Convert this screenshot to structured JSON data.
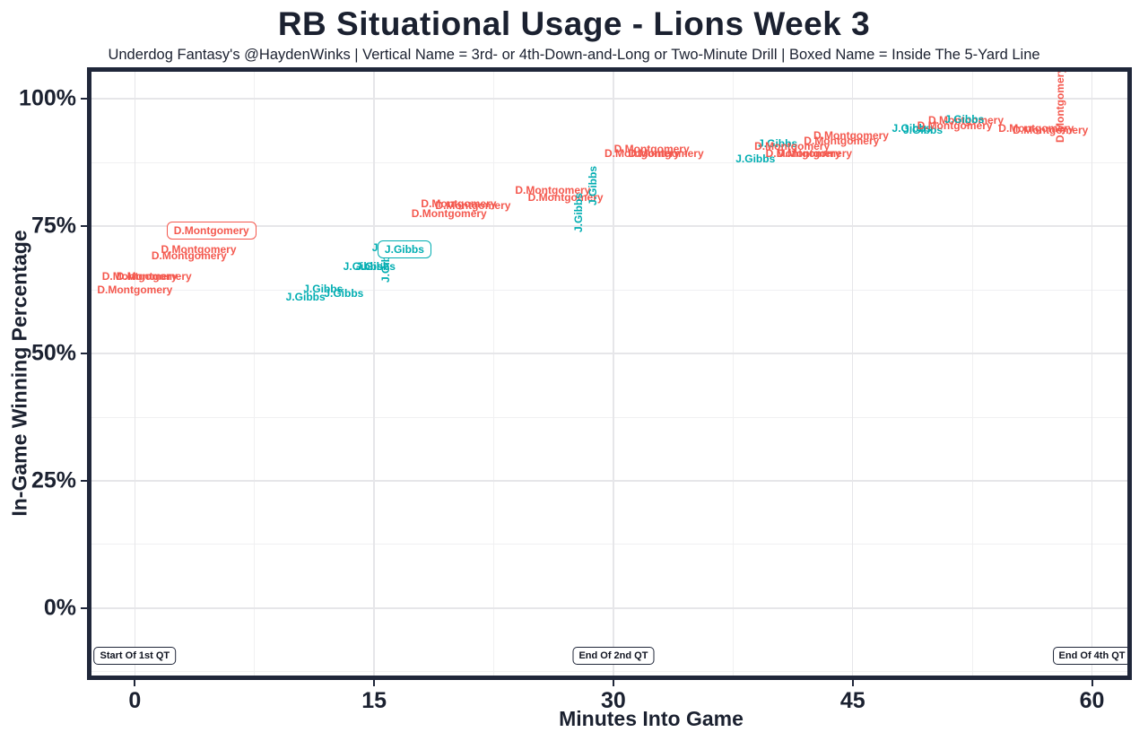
{
  "title": "RB Situational Usage - Lions Week 3",
  "subtitle": "Underdog Fantasy's @HaydenWinks | Vertical Name = 3rd- or 4th-Down-and-Long or Two-Minute Drill | Boxed Name = Inside The 5-Yard Line",
  "colors": {
    "montgomery": "#f4584e",
    "gibbs": "#00adb1",
    "text": "#1b2130",
    "border": "#20273a",
    "grid_major": "#e6e6e9",
    "grid_minor": "#f0f0f2",
    "background": "#ffffff"
  },
  "chart_data": {
    "type": "scatter",
    "title": "RB Situational Usage - Lions Week 3",
    "xlabel": "Minutes Into Game",
    "ylabel": "In-Game Winning Percentage",
    "xlim": [
      -3,
      62.5
    ],
    "ylim": [
      -14.1,
      106.2
    ],
    "x_ticks": [
      {
        "value": 0,
        "label": "0"
      },
      {
        "value": 15,
        "label": "15"
      },
      {
        "value": 30,
        "label": "30"
      },
      {
        "value": 45,
        "label": "45"
      },
      {
        "value": 60,
        "label": "60"
      }
    ],
    "y_ticks": [
      {
        "value": 0,
        "label": "0%"
      },
      {
        "value": 25,
        "label": "25%"
      },
      {
        "value": 50,
        "label": "50%"
      },
      {
        "value": 75,
        "label": "75%"
      },
      {
        "value": 100,
        "label": "100%"
      }
    ],
    "x_minor": [
      7.5,
      22.5,
      37.5,
      52.5
    ],
    "y_minor": [
      -12.5,
      12.5,
      37.5,
      62.5,
      87.5
    ],
    "grid": true,
    "legend": "none",
    "series_colors": {
      "D.Montgomery": "#f4584e",
      "J.Gibbs": "#00adb1"
    },
    "annotations": [
      {
        "label": "Start Of 1st QT",
        "x": 0,
        "y": -9.3
      },
      {
        "label": "End Of 2nd QT",
        "x": 30,
        "y": -9.3
      },
      {
        "label": "End Of 4th QT",
        "x": 60,
        "y": -9.3
      }
    ],
    "points": [
      {
        "player": "D.Montgomery",
        "x": 4.8,
        "y": 74.1,
        "rot": "h",
        "boxed": true
      },
      {
        "player": "D.Montgomery",
        "x": 4.0,
        "y": 70.4,
        "rot": "h",
        "boxed": false
      },
      {
        "player": "D.Montgomery",
        "x": 3.4,
        "y": 69.2,
        "rot": "h",
        "boxed": false
      },
      {
        "player": "D.Montgomery",
        "x": 0.3,
        "y": 65.1,
        "rot": "h",
        "boxed": false
      },
      {
        "player": "D.Montgomery",
        "x": 1.2,
        "y": 65.1,
        "rot": "h",
        "boxed": false
      },
      {
        "player": "D.Montgomery",
        "x": 0.0,
        "y": 62.5,
        "rot": "h",
        "boxed": false
      },
      {
        "player": "J.Gibbs",
        "x": 11.8,
        "y": 62.7,
        "rot": "h",
        "boxed": false
      },
      {
        "player": "J.Gibbs",
        "x": 13.1,
        "y": 61.8,
        "rot": "h",
        "boxed": false
      },
      {
        "player": "J.Gibbs",
        "x": 10.7,
        "y": 61.1,
        "rot": "h",
        "boxed": false
      },
      {
        "player": "J.Gibbs",
        "x": 15.1,
        "y": 67.1,
        "rot": "h",
        "boxed": false
      },
      {
        "player": "J.Gibbs",
        "x": 14.3,
        "y": 67.1,
        "rot": "h",
        "boxed": false
      },
      {
        "player": "J.Gibbs",
        "x": 15.7,
        "y": 67.8,
        "rot": "v",
        "boxed": false
      },
      {
        "player": "J.Gibbs",
        "x": 16.1,
        "y": 70.8,
        "rot": "h",
        "boxed": false
      },
      {
        "player": "J.Gibbs",
        "x": 16.9,
        "y": 70.4,
        "rot": "h",
        "boxed": true
      },
      {
        "player": "D.Montgomery",
        "x": 20.3,
        "y": 79.4,
        "rot": "h",
        "boxed": false
      },
      {
        "player": "D.Montgomery",
        "x": 21.2,
        "y": 79.0,
        "rot": "h",
        "boxed": false
      },
      {
        "player": "D.Montgomery",
        "x": 19.7,
        "y": 77.5,
        "rot": "h",
        "boxed": false
      },
      {
        "player": "D.Montgomery",
        "x": 26.2,
        "y": 82.0,
        "rot": "h",
        "boxed": false
      },
      {
        "player": "D.Montgomery",
        "x": 27.0,
        "y": 80.6,
        "rot": "h",
        "boxed": false
      },
      {
        "player": "J.Gibbs",
        "x": 27.8,
        "y": 77.6,
        "rot": "v",
        "boxed": false
      },
      {
        "player": "J.Gibbs",
        "x": 28.7,
        "y": 82.9,
        "rot": "v",
        "boxed": false
      },
      {
        "player": "D.Montgomery",
        "x": 32.4,
        "y": 90.1,
        "rot": "h",
        "boxed": false
      },
      {
        "player": "D.Montgomery",
        "x": 31.8,
        "y": 89.3,
        "rot": "h",
        "boxed": false
      },
      {
        "player": "D.Montgomery",
        "x": 33.3,
        "y": 89.3,
        "rot": "h",
        "boxed": false
      },
      {
        "player": "J.Gibbs",
        "x": 40.3,
        "y": 91.2,
        "rot": "h",
        "boxed": false
      },
      {
        "player": "J.Gibbs",
        "x": 38.9,
        "y": 88.2,
        "rot": "h",
        "boxed": false
      },
      {
        "player": "D.Montgomery",
        "x": 44.9,
        "y": 92.8,
        "rot": "h",
        "boxed": false
      },
      {
        "player": "D.Montgomery",
        "x": 44.3,
        "y": 91.7,
        "rot": "h",
        "boxed": false
      },
      {
        "player": "D.Montgomery",
        "x": 41.2,
        "y": 90.7,
        "rot": "h",
        "boxed": false
      },
      {
        "player": "D.Montgomery",
        "x": 41.9,
        "y": 89.3,
        "rot": "h",
        "boxed": false
      },
      {
        "player": "D.Montgomery",
        "x": 42.6,
        "y": 89.3,
        "rot": "h",
        "boxed": false
      },
      {
        "player": "J.Gibbs",
        "x": 48.7,
        "y": 94.2,
        "rot": "h",
        "boxed": false
      },
      {
        "player": "J.Gibbs",
        "x": 49.4,
        "y": 93.8,
        "rot": "h",
        "boxed": false
      },
      {
        "player": "D.Montgomery",
        "x": 52.1,
        "y": 95.8,
        "rot": "h",
        "boxed": false
      },
      {
        "player": "J.Gibbs",
        "x": 52.0,
        "y": 96.0,
        "rot": "h",
        "boxed": false
      },
      {
        "player": "D.Montgomery",
        "x": 51.4,
        "y": 94.7,
        "rot": "h",
        "boxed": false
      },
      {
        "player": "D.Montgomery",
        "x": 56.5,
        "y": 94.2,
        "rot": "h",
        "boxed": false
      },
      {
        "player": "D.Montgomery",
        "x": 57.4,
        "y": 93.8,
        "rot": "h",
        "boxed": false
      },
      {
        "player": "D.Montgomery",
        "x": 58.0,
        "y": 98.8,
        "rot": "v",
        "boxed": false
      }
    ]
  }
}
